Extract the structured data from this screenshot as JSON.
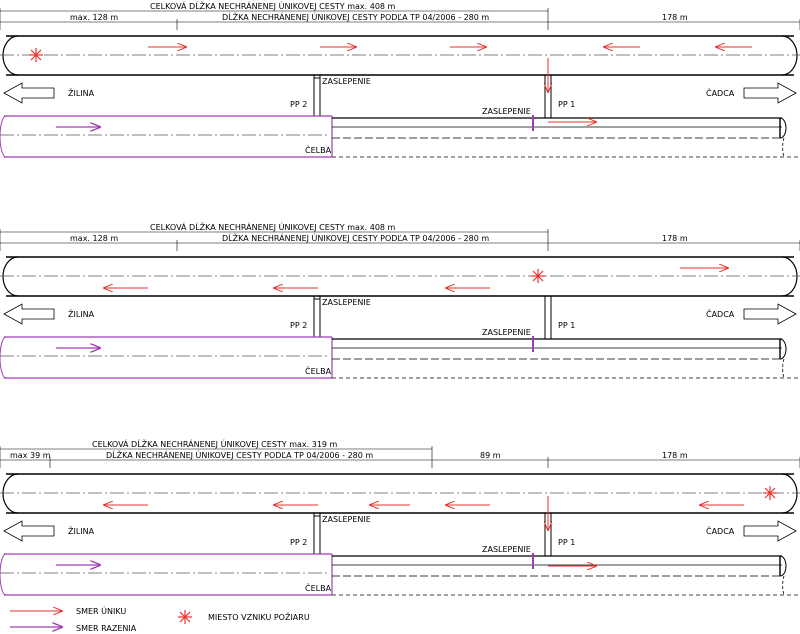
{
  "colors": {
    "escape": "#e8322e",
    "driving": "#a23cb4",
    "line": "#000000",
    "fire": "#e8322e"
  },
  "panels": [
    {
      "total_label": "CELKOVÁ DĹŽKA NECHRÁNENEJ ÚNIKOVEJ CESTY max. 408 m",
      "segments": [
        "max. 128 m",
        "DĹŽKA NECHRÁNENEJ ÚNIKOVEJ CESTY PODĽA TP 04/2006 - 280 m",
        "178 m"
      ],
      "west": "ŽILINA",
      "east": "ČADCA",
      "pp2": "PP 2",
      "pp1": "PP 1",
      "blank_upper": "ZASLEPENIE",
      "blank_lower": "ZASLEPENIE",
      "face": "ČELBA"
    },
    {
      "total_label": "CELKOVÁ DĹŽKA NECHRÁNENEJ ÚNIKOVEJ CESTY max. 408 m",
      "segments": [
        "max. 128 m",
        "DĹŽKA NECHRÁNENEJ ÚNIKOVEJ CESTY PODĽA TP 04/2006 - 280 m",
        "178 m"
      ],
      "west": "ŽILINA",
      "east": "ČADCA",
      "pp2": "PP 2",
      "pp1": "PP 1",
      "blank_upper": "ZASLEPENIE",
      "blank_lower": "ZASLEPENIE",
      "face": "ČELBA"
    },
    {
      "total_label": "CELKOVÁ DĹŽKA NECHRÁNENEJ ÚNIKOVEJ CESTY max. 319 m",
      "segments": [
        "max 39 m",
        "DĹŽKA NECHRÁNENEJ ÚNIKOVEJ CESTY PODĽA TP 04/2006 - 280 m",
        "89 m",
        "178 m"
      ],
      "west": "ŽILINA",
      "east": "ČADCA",
      "pp2": "PP 2",
      "pp1": "PP 1",
      "blank_upper": "ZASLEPENIE",
      "blank_lower": "ZASLEPENIE",
      "face": "ČELBA"
    }
  ],
  "legend": {
    "escape": "SMER ÚNIKU",
    "driving": "SMER RAZENIA",
    "fire": "MIESTO VZNIKU POŽIARU"
  }
}
